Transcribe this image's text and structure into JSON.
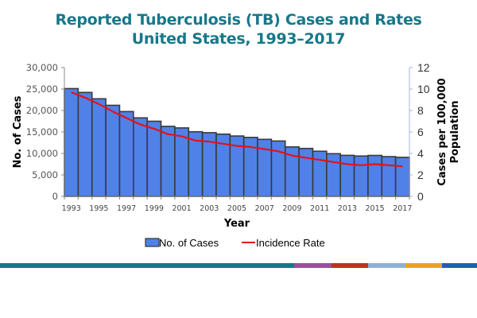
{
  "title_line1": "Reported Tuberculosis (TB) Cases and Rates",
  "title_line2": "United States, 1993–2017",
  "chart_data": {
    "type": "bar",
    "title": "Reported Tuberculosis (TB) Cases and Rates United States, 1993–2017",
    "xlabel": "Year",
    "ylabel": "No. of Cases",
    "y2label_line1": "Cases per 100,000",
    "y2label_line2": "Population",
    "ylim": [
      0,
      30000
    ],
    "y2lim": [
      0,
      12
    ],
    "yticks": [
      "0",
      "5,000",
      "10,000",
      "15,000",
      "20,000",
      "25,000",
      "30,000"
    ],
    "y2ticks": [
      "0",
      "2",
      "4",
      "6",
      "8",
      "10",
      "12"
    ],
    "categories": [
      "1993",
      "1994",
      "1995",
      "1996",
      "1997",
      "1998",
      "1999",
      "2000",
      "2001",
      "2002",
      "2003",
      "2004",
      "2005",
      "2006",
      "2007",
      "2008",
      "2009",
      "2010",
      "2011",
      "2012",
      "2013",
      "2014",
      "2015",
      "2016",
      "2017"
    ],
    "xtick_labels": [
      "1993",
      "1995",
      "1997",
      "1999",
      "2001",
      "2003",
      "2005",
      "2007",
      "2009",
      "2011",
      "2013",
      "2015",
      "2017"
    ],
    "series": [
      {
        "name": "No. of Cases",
        "type": "bar",
        "axis": "left",
        "color": "#4f81e8",
        "values": [
          25103,
          24205,
          22727,
          21210,
          19751,
          18286,
          17500,
          16308,
          15945,
          15055,
          14835,
          14499,
          14063,
          13732,
          13282,
          12895,
          11520,
          11161,
          10510,
          9940,
          9557,
          9398,
          9537,
          9255,
          9093
        ]
      },
      {
        "name": "Incidence Rate",
        "type": "line",
        "axis": "right",
        "color": "#e8101a",
        "values": [
          9.7,
          9.2,
          8.6,
          7.9,
          7.3,
          6.7,
          6.3,
          5.8,
          5.6,
          5.2,
          5.1,
          4.9,
          4.7,
          4.6,
          4.4,
          4.2,
          3.8,
          3.6,
          3.4,
          3.2,
          3.0,
          2.9,
          3.0,
          2.9,
          2.8
        ]
      }
    ],
    "legend": {
      "position": "bottom",
      "items": [
        "No. of Cases",
        "Incidence Rate"
      ]
    },
    "grid": false
  },
  "footer_stripe_colors": [
    "#17788a",
    "#9b4f9e",
    "#c0311f",
    "#8fb0d8",
    "#f0a023",
    "#1f5fb0"
  ]
}
